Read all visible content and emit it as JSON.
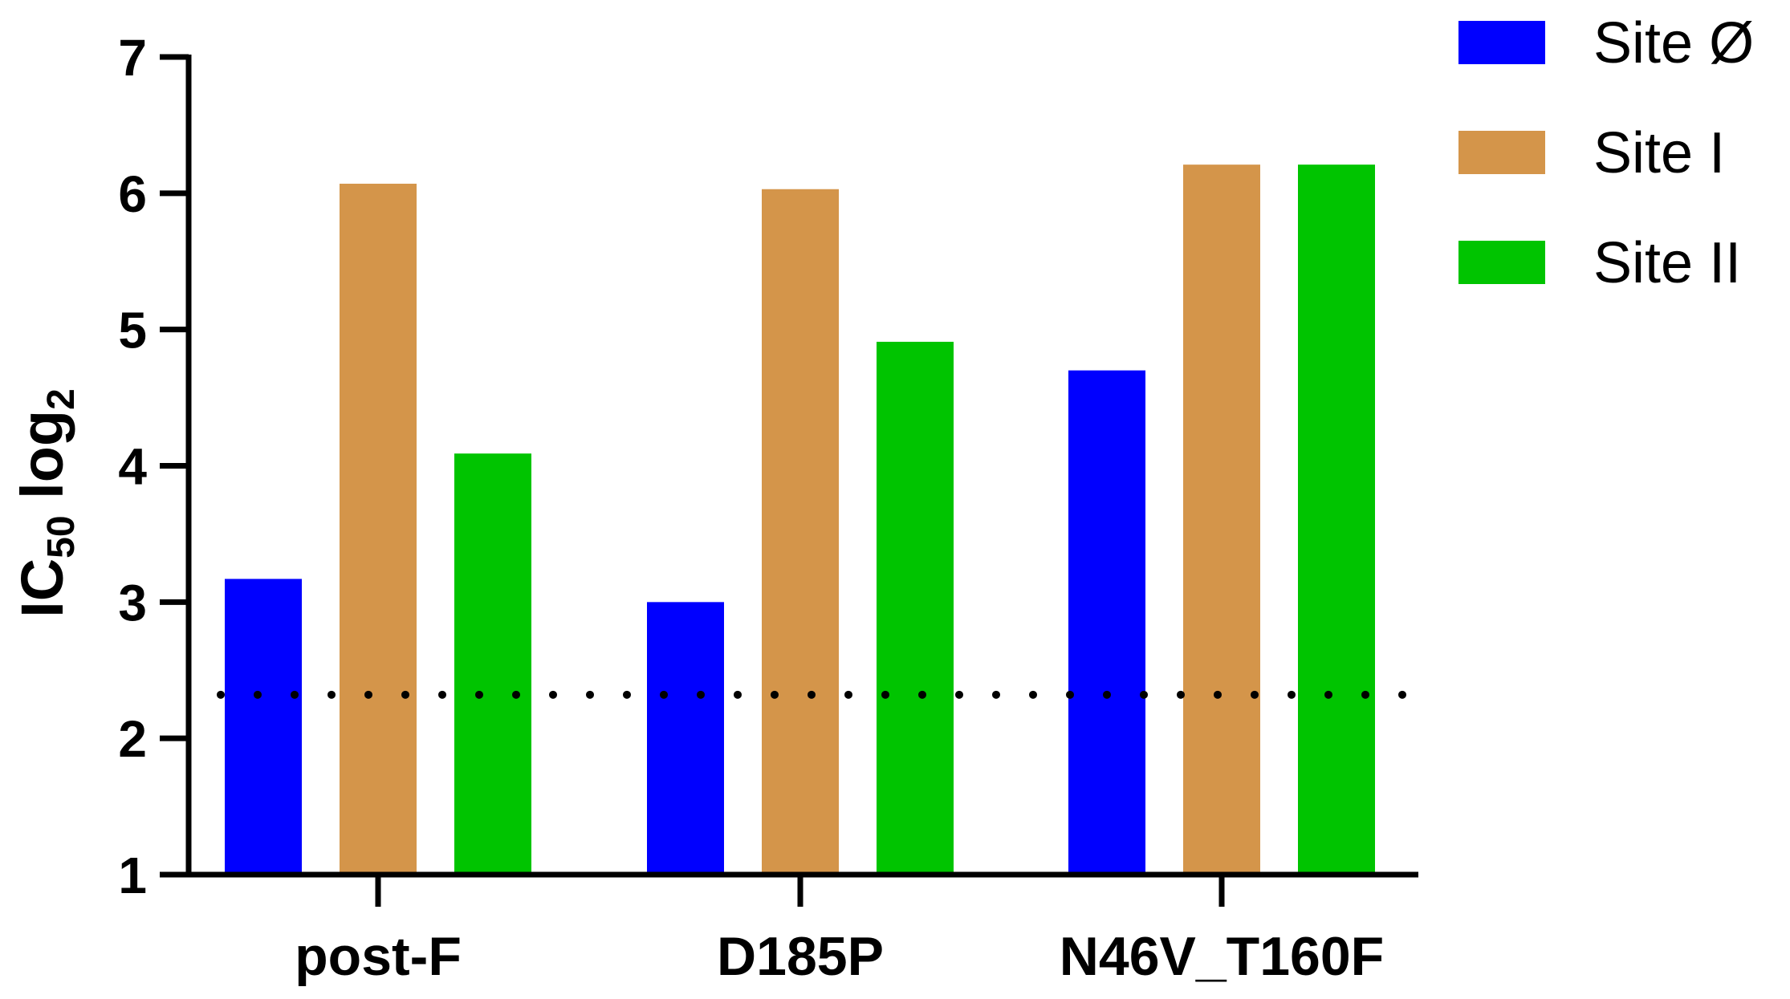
{
  "chart_data": {
    "type": "bar",
    "categories": [
      "post-F",
      "D185P",
      "N46V_T160F"
    ],
    "series": [
      {
        "name": "Site Ø",
        "color": "#0000FF",
        "values": [
          3.17,
          3.0,
          4.7
        ]
      },
      {
        "name": "Site I",
        "color": "#D4954A",
        "values": [
          6.07,
          6.03,
          6.21
        ]
      },
      {
        "name": "Site II",
        "color": "#00C400",
        "values": [
          4.09,
          4.91,
          6.21
        ]
      }
    ],
    "ylabel": {
      "main": "IC",
      "sub": "50",
      "after": " log",
      "after_sub": "2"
    },
    "ylim": [
      1,
      7
    ],
    "yticks": [
      "1",
      "2",
      "3",
      "4",
      "5",
      "6",
      "7"
    ],
    "threshold": 2.32,
    "threshold_style": "dotted",
    "grid": false,
    "legend_position": "top-right"
  }
}
